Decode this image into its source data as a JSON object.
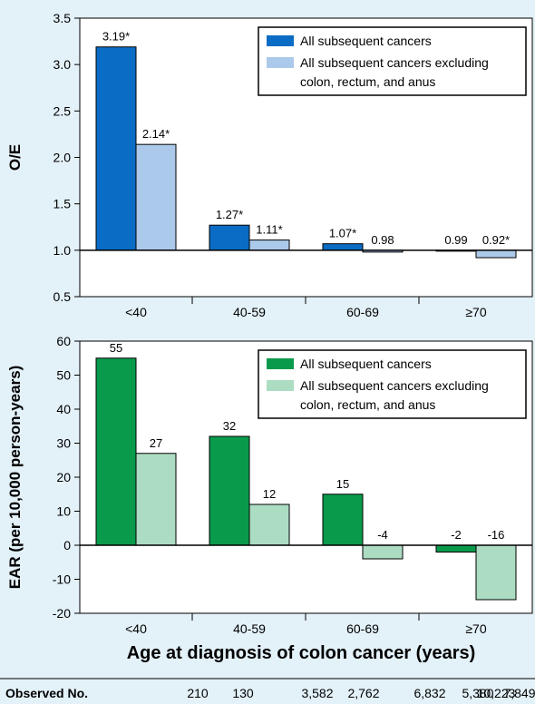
{
  "chart_data": [
    {
      "type": "bar",
      "ylabel": "O/E",
      "ylim": [
        0.5,
        3.5
      ],
      "yticks": [
        "0.5",
        "1.0",
        "1.5",
        "2.0",
        "2.5",
        "3.0",
        "3.5"
      ],
      "baseline": 1.0,
      "categories": [
        "<40",
        "40-59",
        "60-69",
        "≥70"
      ],
      "series": [
        {
          "name": "All subsequent cancers",
          "color": "#0a6cc4",
          "values": [
            3.19,
            1.27,
            1.07,
            0.99
          ],
          "labels": [
            "3.19*",
            "1.27*",
            "1.07*",
            "0.99"
          ]
        },
        {
          "name": "All subsequent cancers excluding colon, rectum, and anus",
          "color": "#abc9ea",
          "values": [
            2.14,
            1.11,
            0.98,
            0.92
          ],
          "labels": [
            "2.14*",
            "1.11*",
            "0.98",
            "0.92*"
          ]
        }
      ],
      "legend_position": "top-right"
    },
    {
      "type": "bar",
      "ylabel": "EAR (per 10,000 person-years)",
      "ylim": [
        -20,
        60
      ],
      "yticks": [
        "-20",
        "-10",
        "0",
        "10",
        "20",
        "30",
        "40",
        "50",
        "60"
      ],
      "baseline": 0,
      "categories": [
        "<40",
        "40-59",
        "60-69",
        "≥70"
      ],
      "series": [
        {
          "name": "All subsequent cancers",
          "color": "#0a9a4c",
          "values": [
            55,
            32,
            15,
            -2
          ],
          "labels": [
            "55",
            "32",
            "15",
            "-2"
          ]
        },
        {
          "name": "All subsequent cancers excluding colon, rectum, and anus",
          "color": "#acdcc2",
          "values": [
            27,
            12,
            -4,
            -16
          ],
          "labels": [
            "27",
            "12",
            "-4",
            "-16"
          ]
        }
      ],
      "xlabel": "Age at diagnosis of colon cancer (years)",
      "legend_position": "top-right"
    }
  ],
  "observed": {
    "label": "Observed No.",
    "values": [
      "210",
      "130",
      "3,582",
      "2,762",
      "6,832",
      "5,380",
      "10,223",
      "7,849"
    ]
  }
}
